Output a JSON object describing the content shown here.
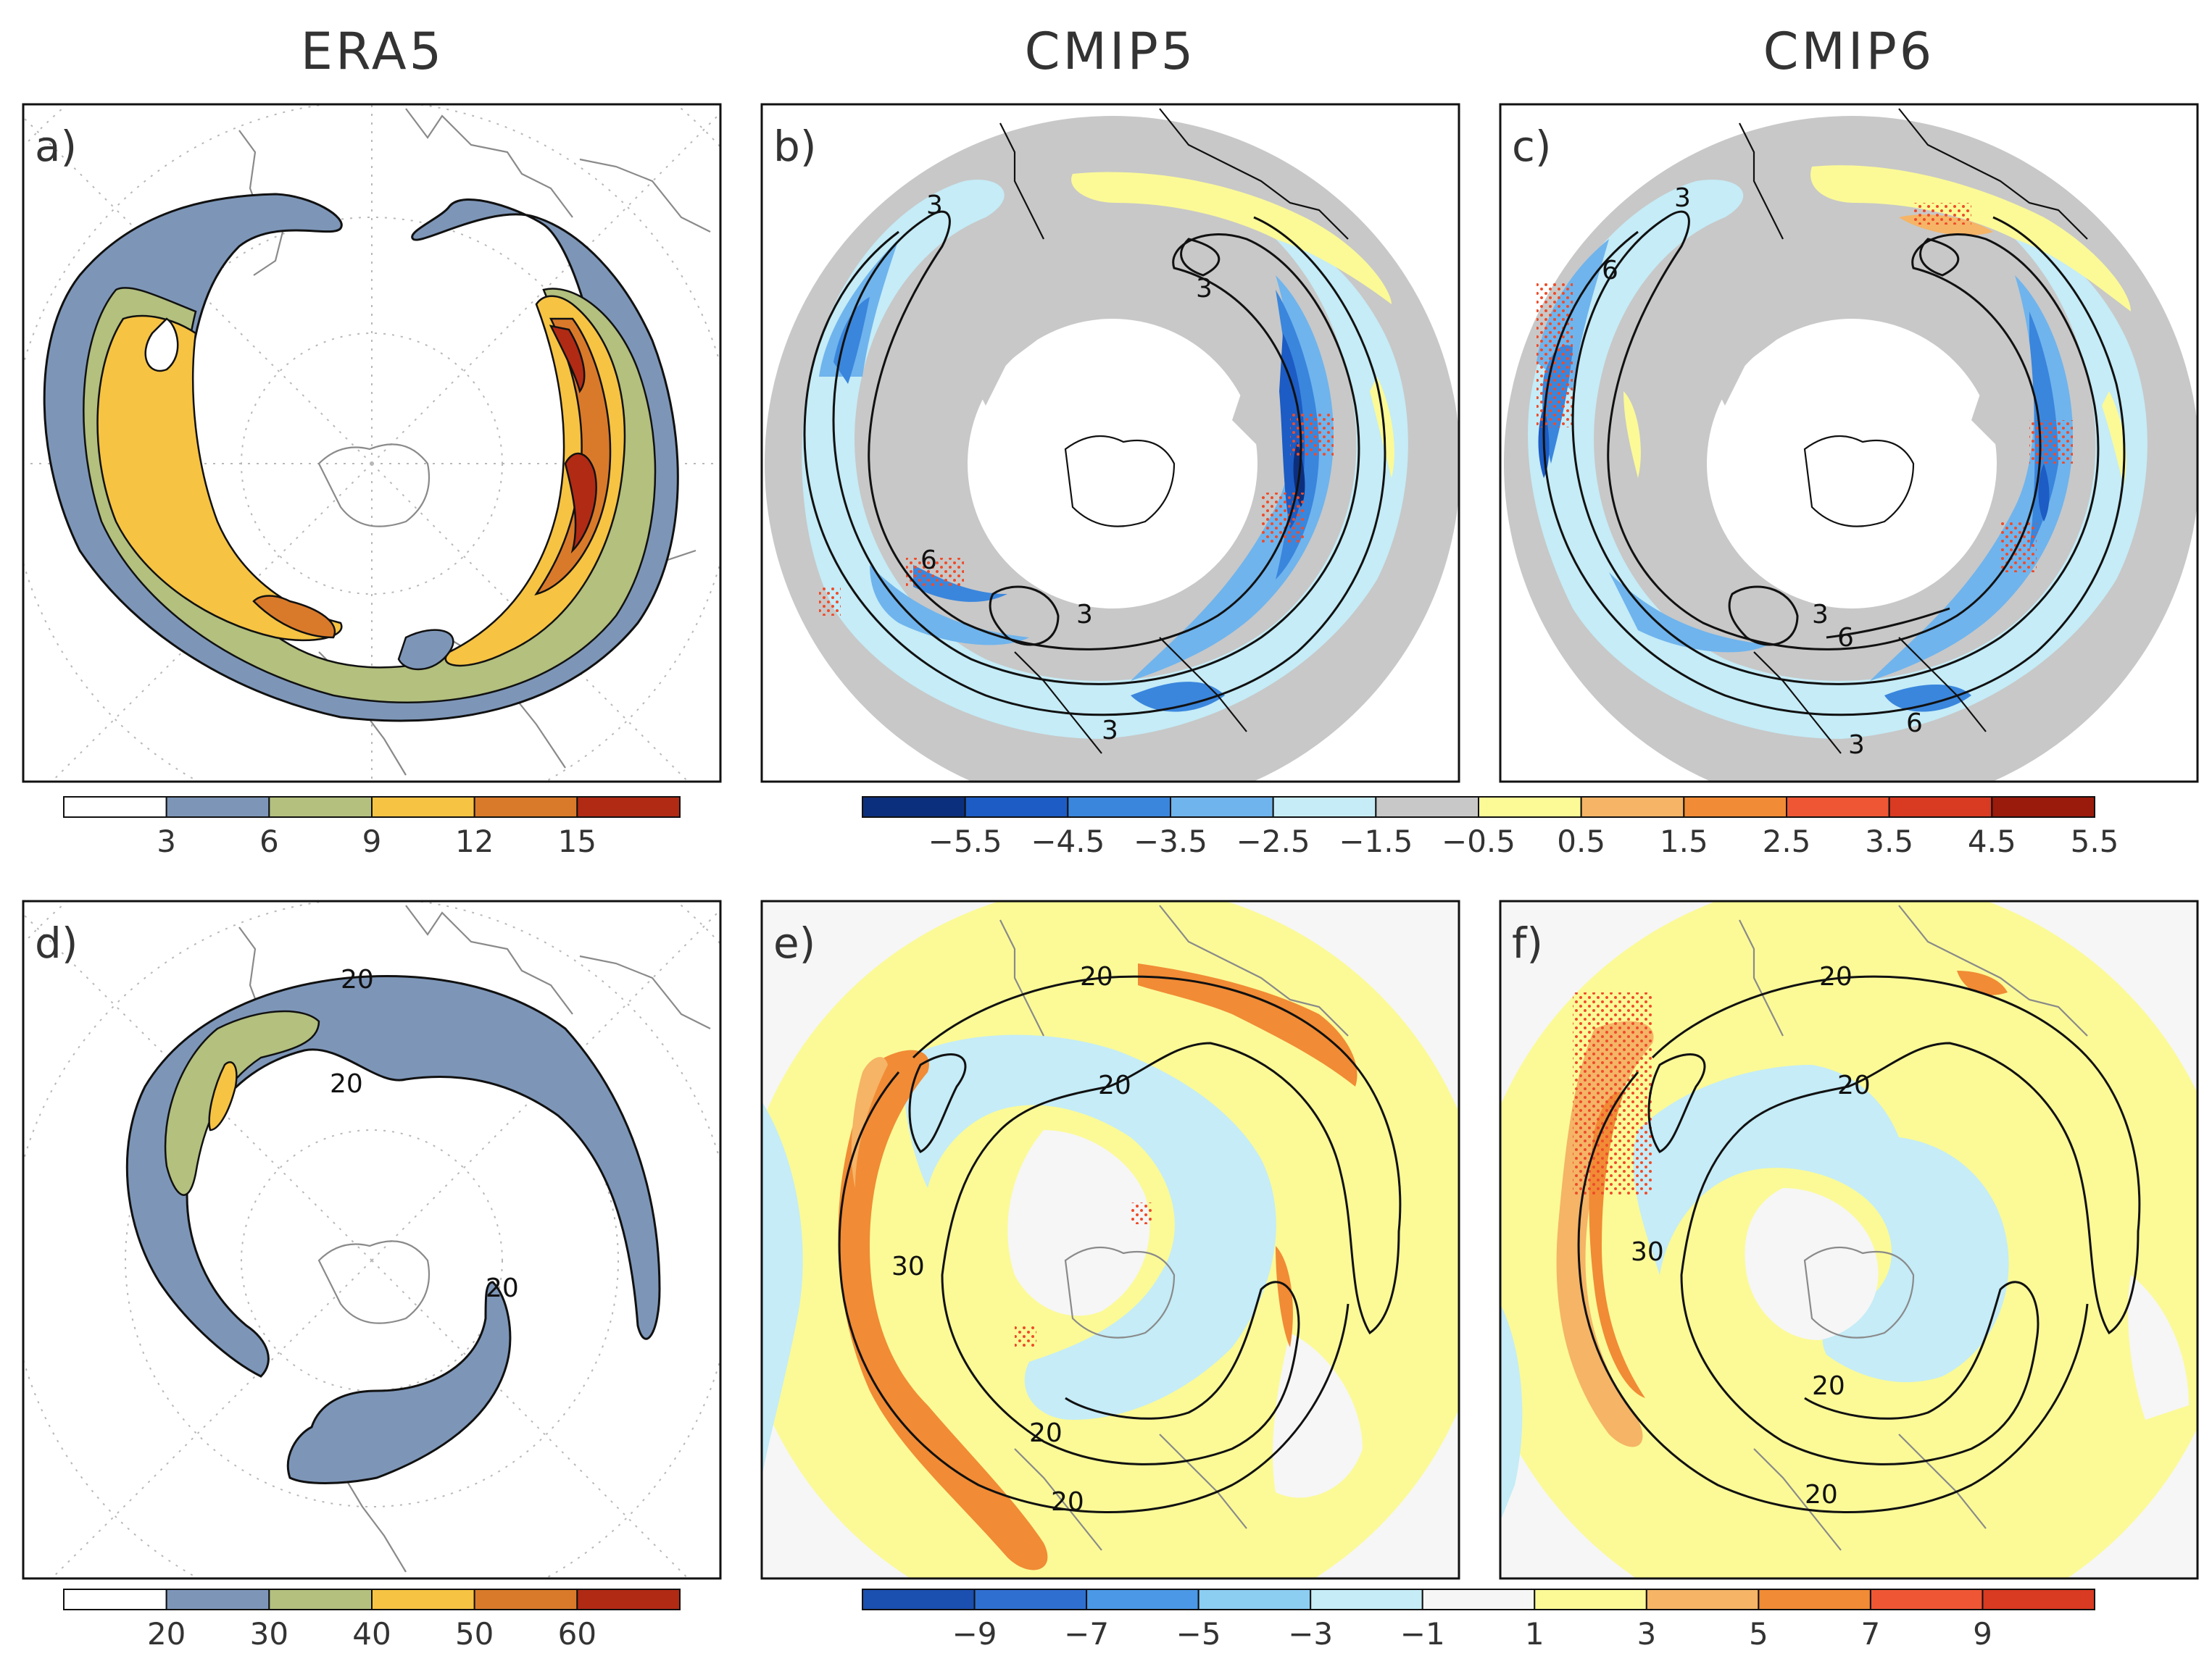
{
  "figure": {
    "column_titles": [
      "ERA5",
      "CMIP5",
      "CMIP6"
    ],
    "panel_labels": [
      "a)",
      "b)",
      "c)",
      "d)",
      "e)",
      "f)"
    ],
    "colors": {
      "seq": [
        "#ffffff",
        "#7d96b8",
        "#b3c07e",
        "#f6c343",
        "#d97a2a",
        "#b12a14"
      ],
      "div_top": [
        "#0c2f7d",
        "#1c5cc4",
        "#3a86dd",
        "#6fb4ed",
        "#c5ecf7",
        "#c8c8c8",
        "#fbfa97",
        "#f5b466",
        "#f18b35",
        "#ef5634",
        "#d83a22",
        "#9a1a0c"
      ],
      "div_bottom": [
        "#1b4fb0",
        "#2f6fd0",
        "#4b98e6",
        "#8ccdf2",
        "#c5ecf7",
        "#f6f6f6",
        "#fbfa97",
        "#f5b466",
        "#f18b35",
        "#ef5634",
        "#d83a22"
      ]
    }
  },
  "chart_data": [
    {
      "panel": "a",
      "column": "ERA5",
      "type": "heatmap",
      "description_scale": "sequential",
      "colorbar": {
        "ticks": [
          "3",
          "6",
          "9",
          "12",
          "15"
        ],
        "levels": [
          3,
          6,
          9,
          12,
          15
        ]
      },
      "contours": []
    },
    {
      "panel": "b",
      "column": "CMIP5",
      "type": "heatmap",
      "colorbar": {
        "ticks": [
          "−5.5",
          "−4.5",
          "−3.5",
          "−2.5",
          "−1.5",
          "−0.5",
          "0.5",
          "1.5",
          "2.5",
          "3.5",
          "4.5",
          "5.5"
        ],
        "levels": [
          -5.5,
          -4.5,
          -3.5,
          -2.5,
          -1.5,
          -0.5,
          0.5,
          1.5,
          2.5,
          3.5,
          4.5,
          5.5
        ]
      },
      "contour_labels": [
        "3",
        "6",
        "3",
        "3",
        "3"
      ]
    },
    {
      "panel": "c",
      "column": "CMIP6",
      "type": "heatmap",
      "colorbar": {
        "ticks": [
          "−5.5",
          "−4.5",
          "−3.5",
          "−2.5",
          "−1.5",
          "−0.5",
          "0.5",
          "1.5",
          "2.5",
          "3.5",
          "4.5",
          "5.5"
        ],
        "levels": [
          -5.5,
          -4.5,
          -3.5,
          -2.5,
          -1.5,
          -0.5,
          0.5,
          1.5,
          2.5,
          3.5,
          4.5,
          5.5
        ]
      },
      "contour_labels": [
        "3",
        "6",
        "3",
        "6",
        "6",
        "3"
      ]
    },
    {
      "panel": "d",
      "column": "ERA5",
      "type": "heatmap",
      "colorbar": {
        "ticks": [
          "20",
          "30",
          "40",
          "50",
          "60"
        ],
        "levels": [
          20,
          30,
          40,
          50,
          60
        ]
      },
      "contour_labels": [
        "20",
        "20",
        "20"
      ]
    },
    {
      "panel": "e",
      "column": "CMIP5",
      "type": "heatmap",
      "colorbar": {
        "ticks": [
          "−9",
          "−7",
          "−5",
          "−3",
          "−1",
          "1",
          "3",
          "5",
          "7",
          "9"
        ],
        "levels": [
          -9,
          -7,
          -5,
          -3,
          -1,
          1,
          3,
          5,
          7,
          9
        ]
      },
      "contour_labels": [
        "20",
        "20",
        "30",
        "20",
        "20"
      ]
    },
    {
      "panel": "f",
      "column": "CMIP6",
      "type": "heatmap",
      "colorbar": {
        "ticks": [
          "−9",
          "−7",
          "−5",
          "−3",
          "−1",
          "1",
          "3",
          "5",
          "7",
          "9"
        ],
        "levels": [
          -9,
          -7,
          -5,
          -3,
          -1,
          1,
          3,
          5,
          7,
          9
        ]
      },
      "contour_labels": [
        "20",
        "20",
        "30",
        "20",
        "20"
      ]
    }
  ]
}
